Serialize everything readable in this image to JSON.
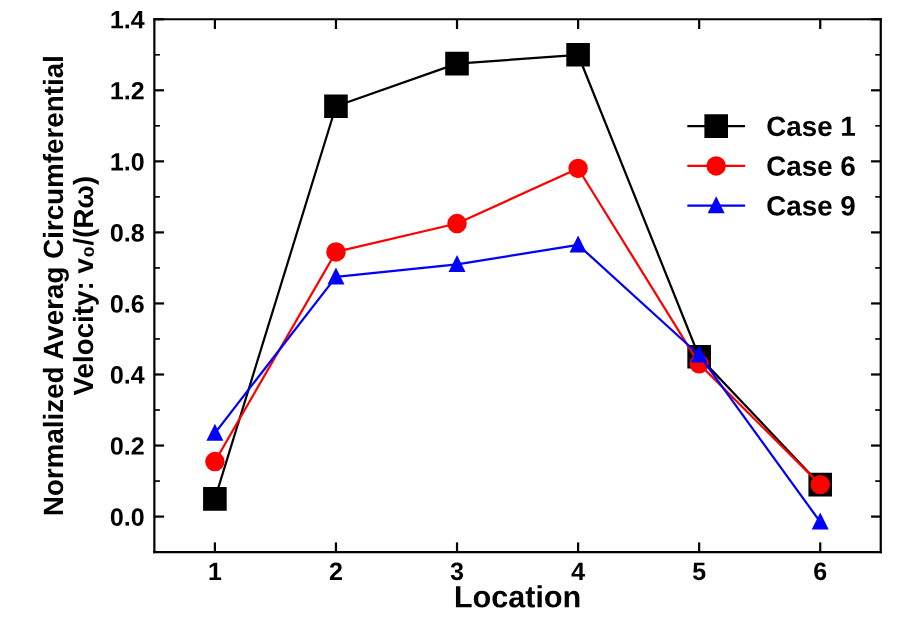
{
  "chart_data": {
    "type": "line",
    "xlabel": "Location",
    "ylabel": "Normalized Averag Circumferential\nVelocity: v₀/(Rω)",
    "x": [
      1,
      2,
      3,
      4,
      5,
      6
    ],
    "series": [
      {
        "name": "Case 1",
        "color": "#000000",
        "marker": "square",
        "values": [
          0.05,
          1.155,
          1.275,
          1.3,
          0.45,
          0.09
        ]
      },
      {
        "name": "Case 6",
        "color": "#ff0000",
        "marker": "circle",
        "values": [
          0.155,
          0.745,
          0.825,
          0.98,
          0.43,
          0.09
        ]
      },
      {
        "name": "Case 9",
        "color": "#0000ff",
        "marker": "triangle",
        "values": [
          0.235,
          0.675,
          0.71,
          0.765,
          0.455,
          -0.015
        ]
      }
    ],
    "xlim": [
      0.5,
      6.5
    ],
    "ylim": [
      -0.1,
      1.4
    ],
    "xticks": [
      1,
      2,
      3,
      4,
      5,
      6
    ],
    "yticks": [
      {
        "value": 0,
        "label": "0.0"
      },
      0.2,
      0.4,
      0.6,
      0.8,
      {
        "value": 1,
        "label": "1.0"
      },
      1.2,
      1.4
    ],
    "grid": false,
    "legend": "right",
    "line_style": "solid"
  }
}
